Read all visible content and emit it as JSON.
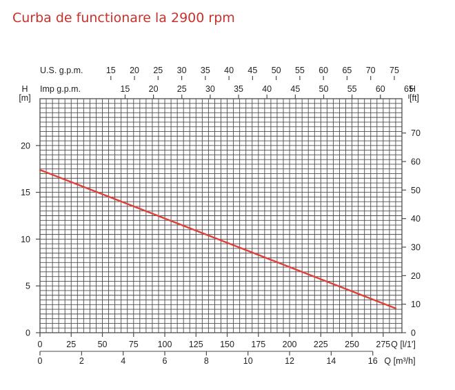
{
  "page_title": "Curba de functionare la 2900 rpm",
  "chart_data": {
    "type": "line",
    "title": "Curba de functionare la 2900 rpm",
    "colors": {
      "curve": "#e0403a",
      "grid": "#4a4a4a",
      "text": "#222222"
    },
    "axes": {
      "q_lmin": {
        "label": "Q [l/1']",
        "ticks": [
          0,
          25,
          50,
          75,
          100,
          125,
          150,
          175,
          200,
          225,
          250,
          275
        ],
        "range": [
          0,
          290
        ]
      },
      "q_m3h": {
        "label": "Q [m³/h]",
        "ticks": [
          0,
          2,
          4,
          6,
          8,
          10,
          12,
          14,
          16
        ]
      },
      "us_gpm": {
        "label": "U.S. g.p.m.",
        "ticks": [
          15,
          20,
          25,
          30,
          35,
          40,
          45,
          50,
          55,
          60,
          65,
          70,
          75
        ]
      },
      "imp_gpm": {
        "label": "Imp g.p.m.",
        "ticks": [
          15,
          20,
          25,
          30,
          35,
          40,
          45,
          50,
          55,
          60,
          65
        ]
      },
      "h_m": {
        "label": "H",
        "unit": "[m]",
        "ticks": [
          0,
          5,
          10,
          15,
          20
        ],
        "range": [
          0,
          25
        ]
      },
      "h_ft": {
        "label": "H",
        "unit": "[ft]",
        "ticks": [
          0,
          10,
          20,
          30,
          40,
          50,
          60,
          70
        ]
      }
    },
    "series": [
      {
        "x": [
          0,
          285
        ],
        "y": [
          17.4,
          2.6
        ]
      }
    ]
  }
}
